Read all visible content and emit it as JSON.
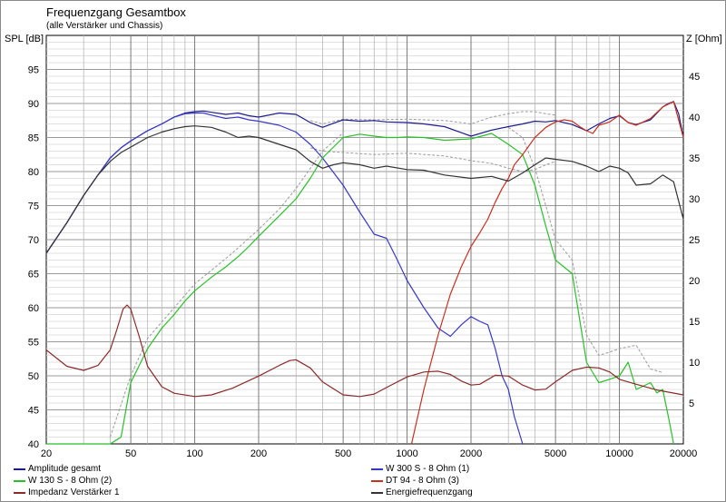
{
  "chart_data": {
    "type": "line",
    "title": "Frequenzgang Gesamtbox",
    "subtitle": "(alle Verstärker und Chassis)",
    "ylabel_left": "SPL [dB]",
    "ylabel_right": "Z [Ohm]",
    "x_scale": "log",
    "xlim": [
      20,
      20000
    ],
    "ylim_left": [
      40,
      100
    ],
    "ylim_right": [
      0,
      50
    ],
    "x_ticks": [
      20,
      50,
      100,
      200,
      500,
      1000,
      2000,
      5000,
      10000,
      20000
    ],
    "x_tick_labels": [
      "20",
      "50",
      "100",
      "200",
      "500",
      "1000",
      "2000",
      "5000",
      "10000",
      "20000"
    ],
    "y_left_ticks": [
      40,
      45,
      50,
      55,
      60,
      65,
      70,
      75,
      80,
      85,
      90,
      95
    ],
    "y_right_ticks": [
      5,
      10,
      15,
      20,
      25,
      30,
      35,
      40,
      45
    ],
    "grid": true,
    "legend_position": "bottom",
    "series": [
      {
        "name": "Amplitude gesamt",
        "axis": "left",
        "color": "#1c1c8c",
        "x": [
          20,
          25,
          30,
          35,
          40,
          45,
          50,
          60,
          70,
          80,
          90,
          100,
          110,
          120,
          140,
          160,
          180,
          200,
          250,
          300,
          350,
          400,
          450,
          500,
          600,
          700,
          800,
          1000,
          1200,
          1500,
          2000,
          2500,
          3000,
          3500,
          4000,
          4500,
          5000,
          6000,
          7000,
          8000,
          9000,
          10000,
          11000,
          12000,
          14000,
          16000,
          17000,
          18000,
          19000,
          20000
        ],
        "values": [
          68,
          72.5,
          76.5,
          79.5,
          82,
          83.5,
          84.5,
          86,
          87,
          88,
          88.6,
          88.8,
          88.9,
          88.7,
          88.4,
          88.6,
          88.2,
          88,
          88.6,
          88.4,
          87.2,
          86.5,
          87.1,
          87.6,
          87.4,
          87.5,
          87.3,
          87.2,
          87.0,
          86.6,
          85.2,
          86.1,
          86.6,
          87.0,
          87.4,
          87.3,
          87.5,
          86.9,
          86.0,
          87.0,
          87.8,
          88.2,
          87.2,
          86.9,
          87.6,
          89.5,
          90.0,
          90.3,
          88.5,
          85.0
        ]
      },
      {
        "name": "W 300 S - 8 Ohm (1)",
        "axis": "left",
        "color": "#3838c8",
        "x": [
          20,
          25,
          30,
          35,
          40,
          45,
          50,
          60,
          70,
          80,
          90,
          100,
          110,
          120,
          140,
          160,
          180,
          200,
          250,
          300,
          350,
          400,
          500,
          600,
          700,
          800,
          900,
          1000,
          1200,
          1400,
          1600,
          1800,
          2000,
          2200,
          2400,
          2600,
          2800,
          3000,
          3200,
          3500
        ],
        "values": [
          68,
          72.5,
          76.5,
          79.5,
          82,
          83.5,
          84.5,
          86,
          87,
          88,
          88.5,
          88.6,
          88.6,
          88.3,
          87.8,
          88.0,
          87.6,
          87.4,
          86.8,
          85.8,
          84.0,
          82.0,
          78.0,
          74.0,
          70.8,
          70.2,
          67.0,
          64.0,
          60.0,
          57.0,
          55.8,
          57.5,
          58.7,
          58.0,
          57.5,
          54.0,
          50.0,
          48.0,
          44.0,
          40.0
        ]
      },
      {
        "name": "W 130 S - 8 Ohm (2)",
        "axis": "left",
        "color": "#28c028",
        "x": [
          20,
          40,
          45,
          50,
          60,
          70,
          80,
          90,
          100,
          120,
          140,
          160,
          180,
          200,
          250,
          300,
          350,
          400,
          500,
          600,
          700,
          800,
          900,
          1000,
          1200,
          1500,
          2000,
          2500,
          3000,
          3500,
          4000,
          4500,
          5000,
          6000,
          7000,
          8000,
          9000,
          10000,
          11000,
          12000,
          14000,
          15000,
          16000,
          17000,
          18000
        ],
        "values": [
          40,
          40,
          41,
          49,
          54,
          57,
          59,
          61,
          62.5,
          64.5,
          66.0,
          67.5,
          69.0,
          70.5,
          73.5,
          76.0,
          79.0,
          82.0,
          85.0,
          85.5,
          85.2,
          85.0,
          85.0,
          85.1,
          85.0,
          84.6,
          84.8,
          85.6,
          84.0,
          82.5,
          78.0,
          72.0,
          67.0,
          65.0,
          52.0,
          49.0,
          49.5,
          50.0,
          52.0,
          48.0,
          49.0,
          47.5,
          48.0,
          44.0,
          40.0
        ]
      },
      {
        "name": "DT 94 - 8 Ohm (3)",
        "axis": "left",
        "color": "#c83020",
        "x": [
          1050,
          1200,
          1400,
          1600,
          1800,
          2000,
          2200,
          2400,
          2600,
          2800,
          3000,
          3200,
          3500,
          4000,
          4500,
          5000,
          5500,
          6000,
          6500,
          7000,
          7500,
          8000,
          9000,
          10000,
          11000,
          12000,
          14000,
          16000,
          18000,
          20000
        ],
        "values": [
          40,
          48,
          56,
          62,
          66,
          69,
          71,
          73,
          75.5,
          77.5,
          79,
          81,
          82.5,
          85,
          86.5,
          87.3,
          87.6,
          87.4,
          86.6,
          86.0,
          85.6,
          86.8,
          87.3,
          88.3,
          87.2,
          86.8,
          87.8,
          89.5,
          90.3,
          85.0
        ]
      },
      {
        "name": "Impedanz Verstärker 1",
        "axis": "right",
        "color": "#8b2a2a",
        "x": [
          20,
          25,
          30,
          35,
          40,
          43,
          46,
          48,
          50,
          55,
          60,
          70,
          80,
          100,
          120,
          150,
          200,
          250,
          280,
          300,
          350,
          400,
          500,
          600,
          700,
          800,
          1000,
          1200,
          1400,
          1600,
          1800,
          2000,
          2200,
          2600,
          3000,
          3500,
          4000,
          4500,
          5000,
          6000,
          7000,
          8000,
          9000,
          10000,
          12000,
          15000,
          20000
        ],
        "values": [
          11.5,
          9.5,
          9.0,
          9.6,
          11.5,
          14,
          16.5,
          17.0,
          16.5,
          13,
          9.5,
          7.0,
          6.2,
          5.8,
          6.0,
          6.8,
          8.3,
          9.6,
          10.2,
          10.3,
          9.3,
          7.6,
          6.0,
          5.8,
          6.1,
          6.9,
          8.2,
          8.8,
          8.9,
          8.5,
          7.7,
          7.2,
          7.3,
          8.4,
          8.3,
          7.2,
          6.6,
          6.7,
          7.6,
          9.0,
          9.4,
          9.3,
          8.8,
          7.9,
          7.3,
          6.6,
          6.0
        ]
      },
      {
        "name": "Energiefrequenzgang",
        "axis": "left",
        "color": "#333333",
        "x": [
          20,
          25,
          30,
          35,
          40,
          45,
          50,
          60,
          70,
          80,
          90,
          100,
          120,
          140,
          160,
          180,
          200,
          250,
          300,
          350,
          400,
          450,
          500,
          600,
          700,
          800,
          1000,
          1200,
          1500,
          2000,
          2500,
          3000,
          3500,
          4000,
          4500,
          5000,
          6000,
          7000,
          8000,
          9000,
          10000,
          11000,
          12000,
          14000,
          16000,
          18000,
          20000
        ],
        "values": [
          68,
          72.5,
          76.5,
          79.5,
          81.5,
          82.8,
          83.6,
          85,
          85.8,
          86.3,
          86.6,
          86.7,
          86.5,
          85.8,
          85.0,
          85.2,
          85.0,
          84.0,
          83.2,
          81.5,
          80.5,
          81.0,
          81.3,
          81.0,
          80.5,
          80.8,
          80.3,
          80.2,
          79.5,
          79.0,
          79.3,
          78.6,
          79.8,
          81.0,
          82.0,
          81.8,
          81.5,
          80.8,
          80.0,
          80.8,
          80.5,
          79.8,
          78.0,
          78.2,
          79.5,
          78.5,
          73.0
        ]
      }
    ],
    "reference_lines": [
      {
        "axis": "left",
        "style": "dotted",
        "x": [
          350,
          400,
          500,
          700,
          1000,
          1500,
          2000,
          2500,
          3000,
          3500,
          4000,
          4500,
          5000
        ],
        "values": [
          87.5,
          87.0,
          87.7,
          87.6,
          87.7,
          87.5,
          87.0,
          88.0,
          88.5,
          88.8,
          88.8,
          88.5,
          88.3
        ]
      },
      {
        "axis": "left",
        "style": "dotted",
        "x": [
          350,
          400,
          500,
          700,
          1000,
          1500,
          2000,
          2500,
          3000,
          3500,
          4000,
          4500,
          5000
        ],
        "values": [
          83.5,
          83.0,
          82.8,
          82.5,
          82.7,
          82.3,
          81.6,
          81.2,
          80.5,
          80.0,
          80.3,
          81.0,
          81.5
        ]
      },
      {
        "axis": "left",
        "style": "dotted",
        "x": [
          40,
          50,
          60,
          80,
          100,
          150,
          200,
          250,
          300,
          400,
          500
        ],
        "values": [
          41,
          50,
          55.5,
          60,
          63.5,
          68,
          71.5,
          74.5,
          77.5,
          83,
          85.7
        ]
      },
      {
        "axis": "left",
        "style": "dotted",
        "x": [
          3000,
          3500,
          4000,
          4500,
          5000,
          6000,
          7000,
          8000,
          9000,
          10000,
          12000,
          14000,
          16000
        ],
        "values": [
          86.5,
          85.0,
          80.5,
          75.0,
          70.0,
          67.0,
          56.0,
          53.0,
          53.5,
          54.0,
          54.5,
          51.0,
          50.5
        ]
      }
    ],
    "legend": [
      {
        "label": "Amplitude gesamt",
        "color": "#1c1c8c"
      },
      {
        "label": "W 300 S - 8 Ohm (1)",
        "color": "#3838c8"
      },
      {
        "label": "W 130 S - 8 Ohm (2)",
        "color": "#28c028"
      },
      {
        "label": "DT 94 - 8 Ohm (3)",
        "color": "#c83020"
      },
      {
        "label": "Impedanz Verstärker 1",
        "color": "#8b2a2a"
      },
      {
        "label": "Energiefrequenzgang",
        "color": "#333333"
      }
    ]
  }
}
